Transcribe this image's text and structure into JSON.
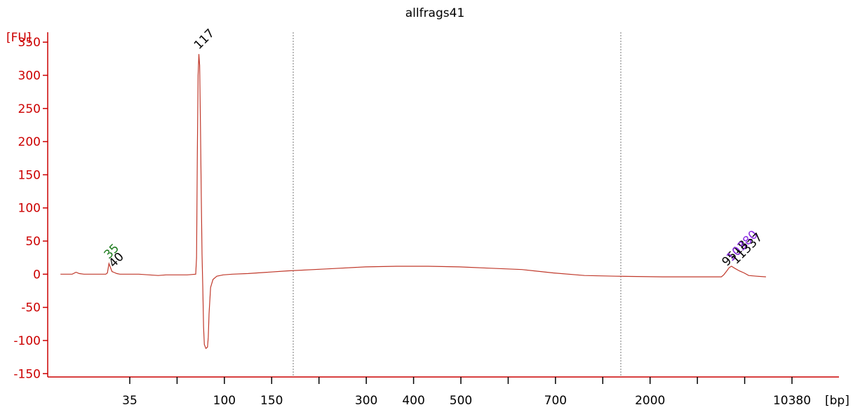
{
  "chart_data": {
    "type": "line",
    "title": "allfrags41",
    "ylabel": "[FU]",
    "xlabel": "[bp]",
    "ylim": [
      -155,
      365
    ],
    "y_ticks": [
      -150,
      -100,
      -50,
      0,
      50,
      100,
      150,
      200,
      250,
      300,
      350
    ],
    "x_tick_labels": [
      "35",
      "",
      "100",
      "150",
      "",
      "300",
      "400",
      "500",
      "",
      "700",
      "",
      "2000",
      "",
      "",
      "10380"
    ],
    "gridlines_at": [
      "200",
      "1000"
    ],
    "series_color": "#c0392b",
    "axis_color": "#cc0000",
    "series": [
      {
        "points": [
          [
            10,
            0
          ],
          [
            25,
            0
          ],
          [
            30,
            3
          ],
          [
            34,
            1
          ],
          [
            40,
            0
          ],
          [
            68,
            0
          ],
          [
            70,
            2
          ],
          [
            72,
            16
          ],
          [
            74,
            10
          ],
          [
            76,
            4
          ],
          [
            78,
            3
          ],
          [
            82,
            1
          ],
          [
            86,
            0
          ],
          [
            110,
            0
          ],
          [
            135,
            -2
          ],
          [
            145,
            -1
          ],
          [
            172,
            -1
          ],
          [
            183,
            0
          ],
          [
            184,
            25
          ],
          [
            185,
            180
          ],
          [
            186,
            300
          ],
          [
            187,
            332
          ],
          [
            188,
            315
          ],
          [
            189,
            230
          ],
          [
            190,
            120
          ],
          [
            191,
            30
          ],
          [
            192,
            -20
          ],
          [
            193,
            -80
          ],
          [
            194,
            -106
          ],
          [
            196,
            -112
          ],
          [
            198,
            -110
          ],
          [
            199,
            -95
          ],
          [
            200,
            -60
          ],
          [
            202,
            -20
          ],
          [
            205,
            -8
          ],
          [
            210,
            -3
          ],
          [
            218,
            -1
          ],
          [
            230,
            0
          ],
          [
            250,
            1
          ],
          [
            300,
            5
          ],
          [
            350,
            8
          ],
          [
            400,
            11
          ],
          [
            440,
            12
          ],
          [
            480,
            12
          ],
          [
            520,
            11
          ],
          [
            560,
            9
          ],
          [
            600,
            7
          ],
          [
            640,
            2
          ],
          [
            680,
            -2
          ],
          [
            720,
            -3
          ],
          [
            780,
            -4
          ],
          [
            830,
            -4
          ],
          [
            855,
            -4
          ],
          [
            858,
            -1
          ],
          [
            862,
            5
          ],
          [
            865,
            10
          ],
          [
            868,
            12
          ],
          [
            872,
            9
          ],
          [
            878,
            5
          ],
          [
            884,
            2
          ],
          [
            890,
            -2
          ],
          [
            900,
            -3
          ],
          [
            912,
            -4
          ]
        ]
      }
    ],
    "peak_labels": [
      {
        "text": "35",
        "x": 72,
        "y": 16,
        "color": "#1a7a1a"
      },
      {
        "text": "40",
        "x": 78,
        "y": 3,
        "color": "#000000"
      },
      {
        "text": "117",
        "x": 187,
        "y": 332,
        "color": "#000000"
      },
      {
        "text": "9518",
        "x": 862,
        "y": 5,
        "color": "#000000"
      },
      {
        "text": "10380",
        "x": 868,
        "y": 12,
        "color": "#8a2be2"
      },
      {
        "text": "11337",
        "x": 874,
        "y": 8,
        "color": "#000000"
      }
    ]
  }
}
